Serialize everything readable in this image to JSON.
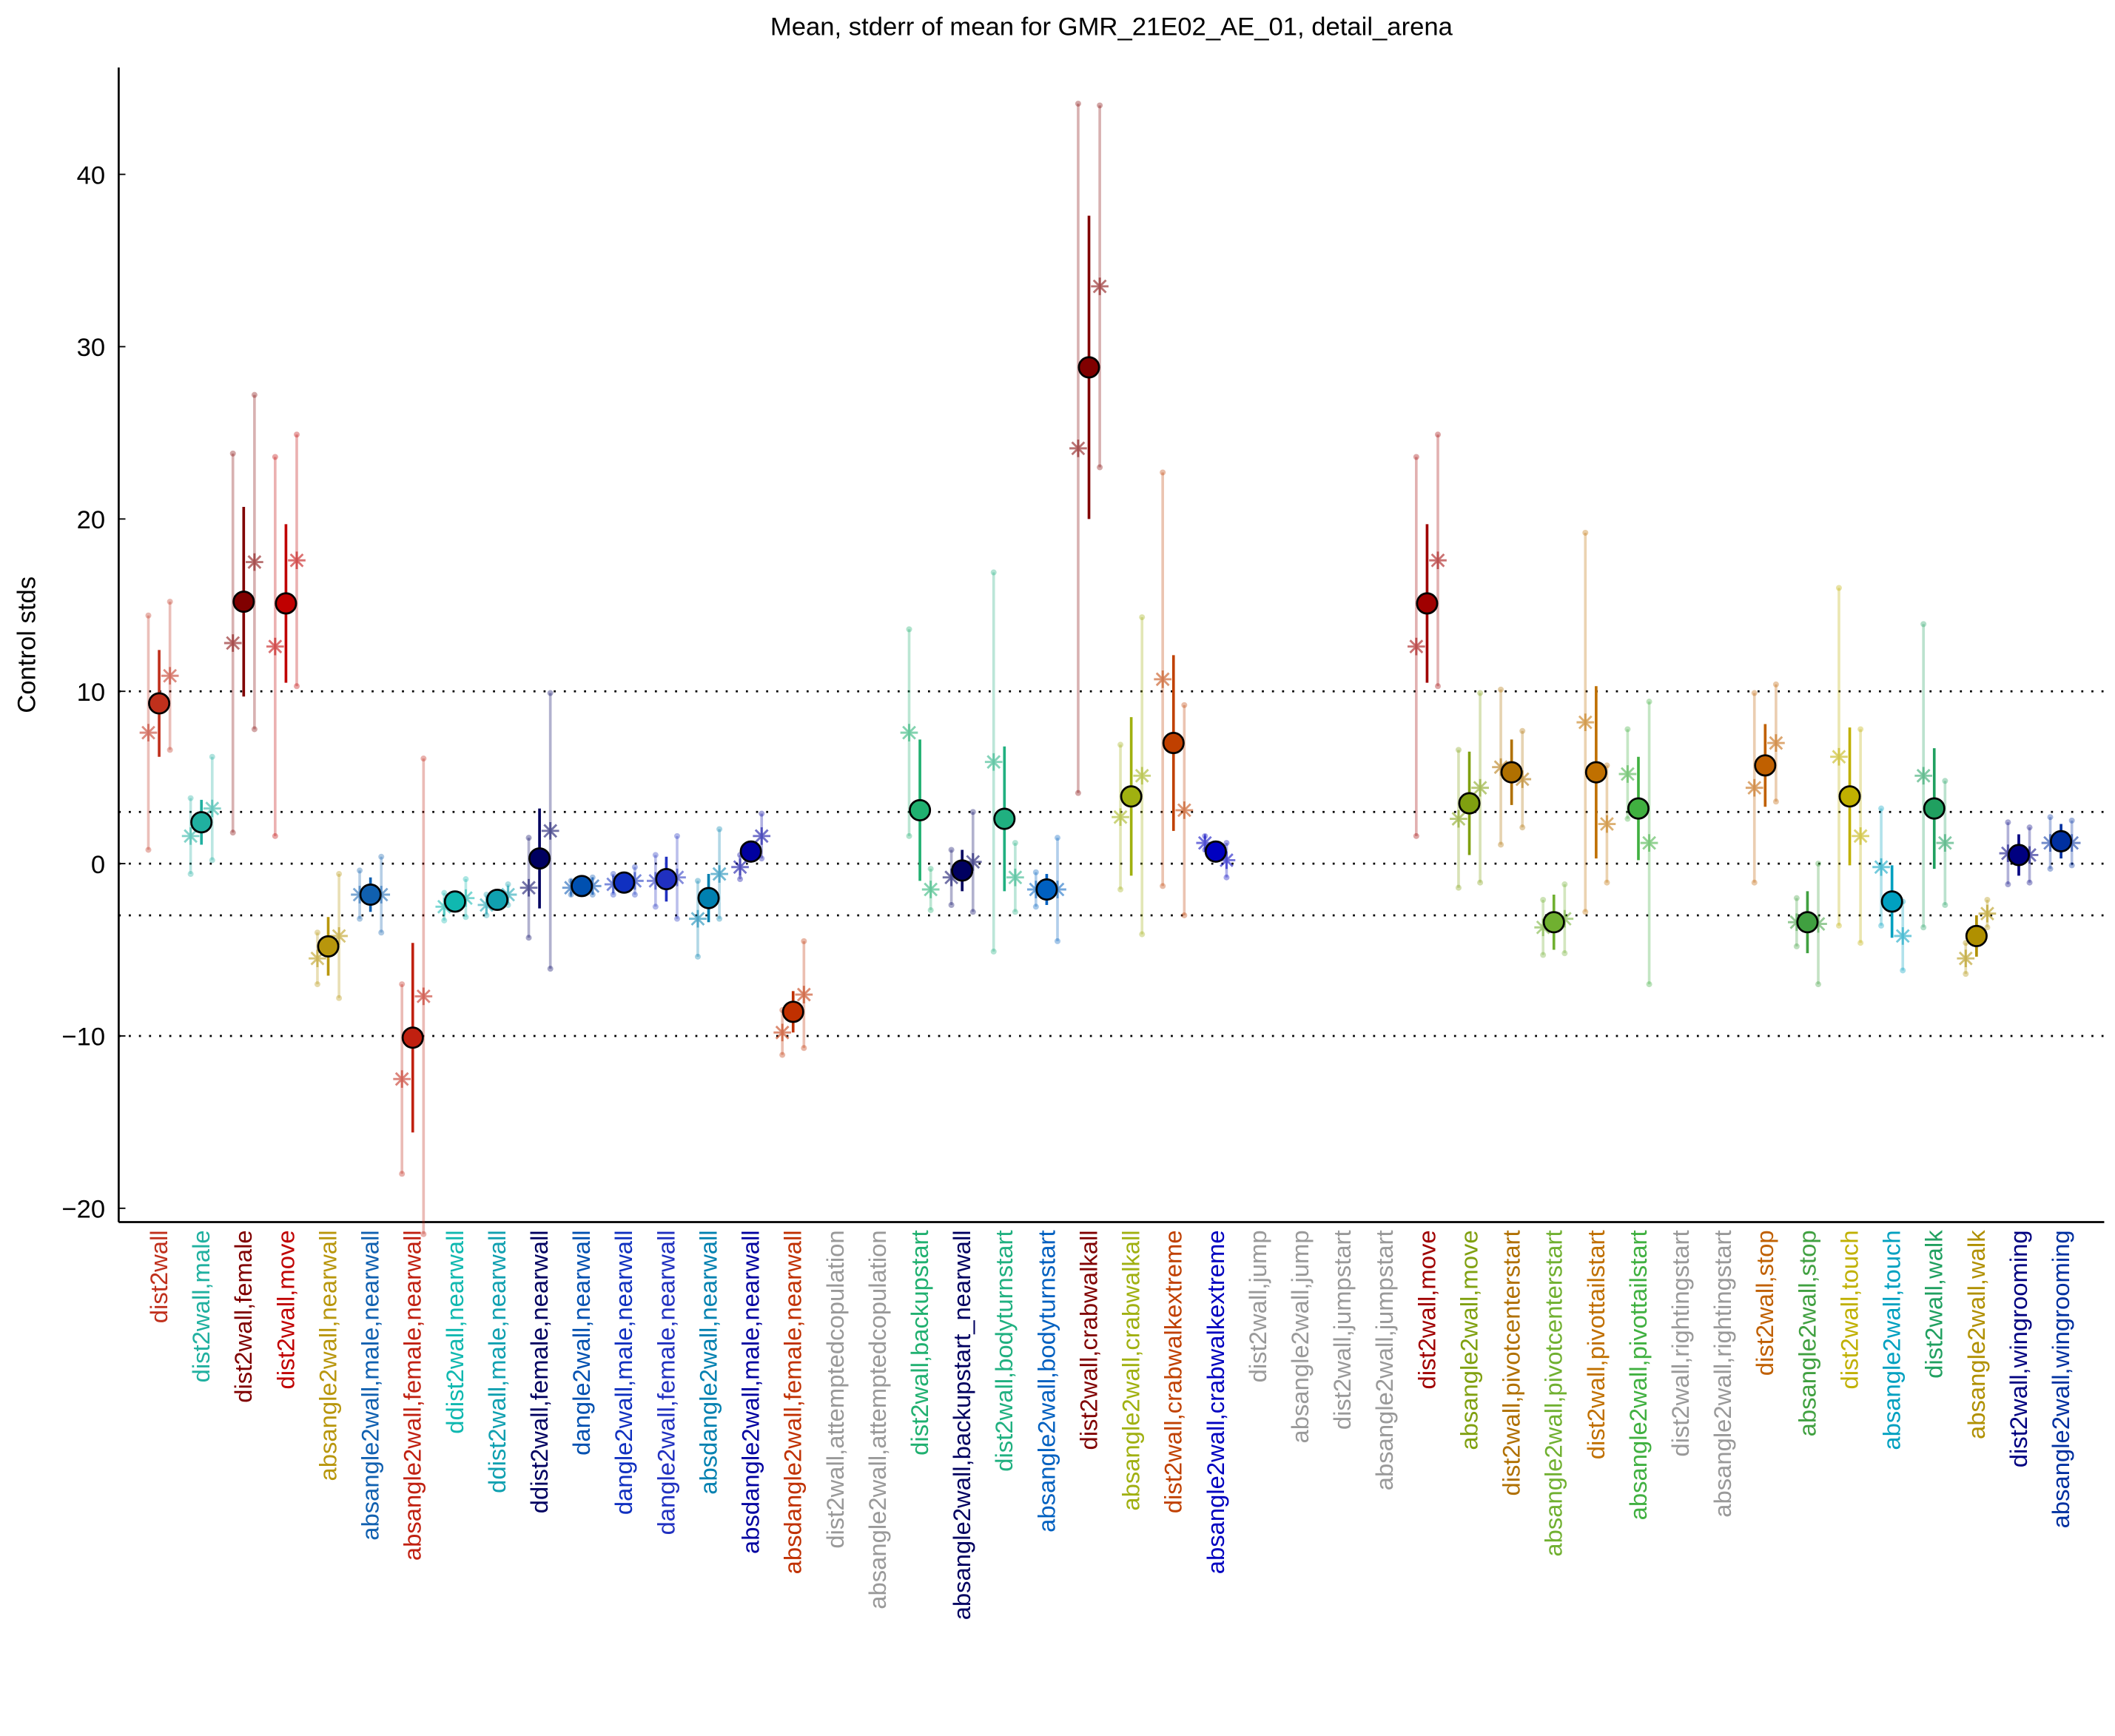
{
  "chart_data": {
    "type": "errorbar",
    "title": "Mean, stderr of mean for GMR_21E02_AE_01, detail_arena",
    "y_label": "Control stds",
    "ylim": [
      -20.8,
      46.2
    ],
    "yticks": [
      -20,
      -10,
      0,
      10,
      20,
      30,
      40
    ],
    "reference_lines": [
      -10,
      -3,
      0,
      3,
      10
    ],
    "categories": [
      "dist2wall",
      "dist2wall,male",
      "dist2wall,female",
      "dist2wall,move",
      "absangle2wall,nearwall",
      "absangle2wall,male,nearwall",
      "absangle2wall,female,nearwall",
      "ddist2wall,nearwall",
      "ddist2wall,male,nearwall",
      "ddist2wall,female,nearwall",
      "dangle2wall,nearwall",
      "dangle2wall,male,nearwall",
      "dangle2wall,female,nearwall",
      "absdangle2wall,nearwall",
      "absdangle2wall,male,nearwall",
      "absdangle2wall,female,nearwall",
      "dist2wall,attemptedcopulation",
      "absangle2wall,attemptedcopulation",
      "dist2wall,backupstart",
      "absangle2wall,backupstart_nearwall",
      "dist2wall,bodyturnstart",
      "absangle2wall,bodyturnstart",
      "dist2wall,crabwalkall",
      "absangle2wall,crabwalkall",
      "dist2wall,crabwalkextreme",
      "absangle2wall,crabwalkextreme",
      "dist2wall,jump",
      "absangle2wall,jump",
      "dist2wall,jumpstart",
      "absangle2wall,jumpstart",
      "dist2wall,move",
      "absangle2wall,move",
      "dist2wall,pivotcenterstart",
      "absangle2wall,pivotcenterstart",
      "dist2wall,pivottailstart",
      "absangle2wall,pivottailstart",
      "dist2wall,rightingstart",
      "absangle2wall,rightingstart",
      "dist2wall,stop",
      "absangle2wall,stop",
      "dist2wall,touch",
      "absangle2wall,touch",
      "dist2wall,walk",
      "absangle2wall,walk",
      "dist2wall,wingrooming",
      "absangle2wall,wingrooming"
    ],
    "colors": [
      "#c0301c",
      "#20b0a0",
      "#800000",
      "#c00000",
      "#b8960c",
      "#1060b0",
      "#c02010",
      "#10b8b0",
      "#10a0b0",
      "#000060",
      "#0050b0",
      "#1030c0",
      "#2030c0",
      "#0080b0",
      "#0000a0",
      "#c03000",
      "#999999",
      "#999999",
      "#20b070",
      "#000060",
      "#20b080",
      "#0060c0",
      "#800000",
      "#a0b010",
      "#c04000",
      "#0000c0",
      "#999999",
      "#999999",
      "#999999",
      "#999999",
      "#a00000",
      "#80a010",
      "#b07000",
      "#70b030",
      "#c07000",
      "#40b040",
      "#999999",
      "#999999",
      "#c06000",
      "#40a040",
      "#c0b000",
      "#00a0c0",
      "#20a060",
      "#b09000",
      "#000080",
      "#0030a0"
    ],
    "values": [
      9.3,
      2.4,
      15.2,
      15.1,
      -4.8,
      -1.8,
      -10.1,
      -2.2,
      -2.1,
      0.3,
      -1.3,
      -1.1,
      -0.9,
      -2.0,
      0.7,
      -8.6,
      null,
      null,
      3.1,
      -0.4,
      2.6,
      -1.5,
      28.8,
      3.9,
      7.0,
      0.7,
      null,
      null,
      null,
      null,
      15.1,
      3.5,
      5.3,
      -3.4,
      5.3,
      3.2,
      null,
      null,
      5.7,
      -3.4,
      3.9,
      -2.2,
      3.2,
      -4.2,
      0.5,
      1.3
    ],
    "errors": [
      3.1,
      1.3,
      5.5,
      4.6,
      1.7,
      1.0,
      5.5,
      0.3,
      0.3,
      2.9,
      0.3,
      0.4,
      1.3,
      1.4,
      0.6,
      1.2,
      null,
      null,
      4.1,
      1.2,
      4.2,
      0.9,
      8.8,
      4.6,
      5.1,
      0.4,
      null,
      null,
      null,
      null,
      4.6,
      3.0,
      1.9,
      1.6,
      5.0,
      3.0,
      null,
      null,
      2.4,
      1.8,
      4.0,
      2.1,
      3.5,
      1.2,
      1.2,
      1.0
    ],
    "star_a": [
      7.6,
      1.6,
      12.8,
      12.6,
      -5.5,
      -1.8,
      -12.5,
      -2.5,
      -2.4,
      -1.4,
      -1.4,
      -1.2,
      -1.0,
      -3.2,
      -0.2,
      -9.8,
      null,
      null,
      7.6,
      -0.8,
      5.9,
      -1.5,
      24.1,
      2.7,
      10.7,
      1.2,
      null,
      null,
      null,
      null,
      12.6,
      2.6,
      5.6,
      -3.7,
      8.2,
      5.2,
      null,
      null,
      4.4,
      -3.4,
      6.2,
      -0.2,
      5.1,
      -5.5,
      0.6,
      1.2
    ],
    "star_a_errors": [
      6.8,
      2.2,
      11,
      11,
      1.5,
      1.4,
      5.5,
      0.8,
      0.6,
      2.9,
      0.4,
      0.6,
      1.5,
      2.2,
      0.7,
      1.3,
      null,
      null,
      6,
      1.6,
      11,
      1.0,
      20,
      4.2,
      12,
      0.4,
      null,
      null,
      null,
      null,
      11,
      4.0,
      4.5,
      1.6,
      11,
      2.6,
      null,
      null,
      5.5,
      1.4,
      9.8,
      3.4,
      8.8,
      0.9,
      1.8,
      1.5
    ],
    "star_b": [
      10.9,
      3.2,
      17.5,
      17.6,
      -4.2,
      -1.8,
      -7.7,
      -2.0,
      -1.8,
      1.9,
      -1.3,
      -1.0,
      -0.8,
      -0.6,
      1.6,
      -7.6,
      null,
      null,
      -1.5,
      0.1,
      -0.8,
      -1.5,
      33.5,
      5.1,
      3.1,
      0.2,
      null,
      null,
      null,
      null,
      17.6,
      4.4,
      4.9,
      -3.2,
      2.3,
      1.2,
      null,
      null,
      7.0,
      -3.5,
      1.6,
      -4.2,
      1.2,
      -2.9,
      0.5,
      1.2
    ],
    "star_b_errors": [
      4.3,
      3.0,
      9.7,
      7.3,
      3.6,
      2.2,
      13.8,
      1.1,
      0.6,
      8.0,
      0.5,
      0.8,
      2.4,
      2.6,
      1.3,
      3.1,
      null,
      null,
      1.2,
      2.9,
      2.0,
      3.0,
      10.5,
      9.2,
      6.1,
      1.0,
      null,
      null,
      null,
      null,
      7.3,
      5.5,
      2.8,
      2.0,
      3.4,
      8.2,
      null,
      null,
      3.4,
      3.5,
      6.2,
      2.0,
      3.6,
      0.8,
      1.6,
      1.3
    ]
  }
}
